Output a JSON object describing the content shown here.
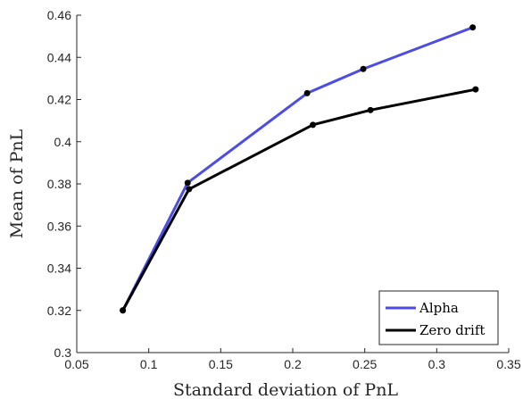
{
  "chart_data": {
    "type": "line",
    "xlabel": "Standard deviation of PnL",
    "ylabel": "Mean of PnL",
    "xlim": [
      0.05,
      0.35
    ],
    "ylim": [
      0.3,
      0.46
    ],
    "xticks": [
      "0.05",
      "0.1",
      "0.15",
      "0.2",
      "0.25",
      "0.3",
      "0.35"
    ],
    "yticks": [
      "0.3",
      "0.32",
      "0.34",
      "0.36",
      "0.38",
      "0.4",
      "0.42",
      "0.44",
      "0.46"
    ],
    "grid": false,
    "legend_position": "bottom-right",
    "series": [
      {
        "name": "Alpha",
        "color": "#4c4ce6",
        "points": [
          {
            "x": 0.082,
            "y": 0.32
          },
          {
            "x": 0.127,
            "y": 0.3805
          },
          {
            "x": 0.21,
            "y": 0.423
          },
          {
            "x": 0.249,
            "y": 0.4345
          },
          {
            "x": 0.325,
            "y": 0.4542
          }
        ]
      },
      {
        "name": "Zero drift",
        "color": "#000000",
        "points": [
          {
            "x": 0.082,
            "y": 0.32
          },
          {
            "x": 0.128,
            "y": 0.3775
          },
          {
            "x": 0.214,
            "y": 0.408
          },
          {
            "x": 0.254,
            "y": 0.415
          },
          {
            "x": 0.327,
            "y": 0.4248
          }
        ]
      }
    ]
  }
}
